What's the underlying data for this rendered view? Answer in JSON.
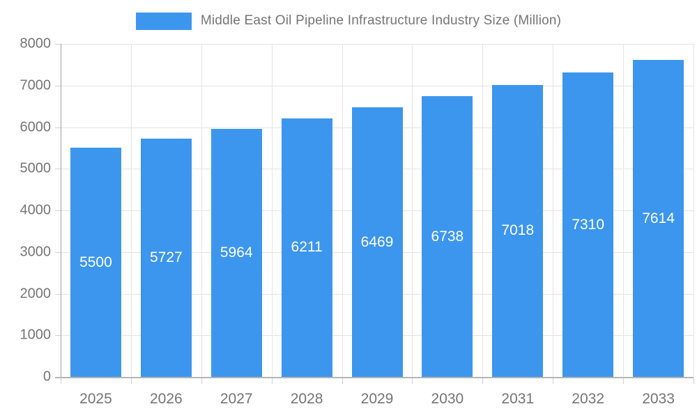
{
  "chart_data": {
    "type": "bar",
    "title": "Middle East Oil Pipeline Infrastructure Industry Size (Million)",
    "categories": [
      "2025",
      "2026",
      "2027",
      "2028",
      "2029",
      "2030",
      "2031",
      "2032",
      "2033"
    ],
    "values": [
      5500,
      5727,
      5964,
      6211,
      6469,
      6738,
      7018,
      7310,
      7614
    ],
    "xlabel": "",
    "ylabel": "",
    "ylim": [
      0,
      8000
    ],
    "y_ticks": [
      0,
      1000,
      2000,
      3000,
      4000,
      5000,
      6000,
      7000,
      8000
    ],
    "grid": "on",
    "legend_position": "top",
    "bar_color": "#3c96ed",
    "bar_label_color": "#ffffff",
    "axis_text_color": "#757575",
    "gridline_color": "#e4e4e4"
  }
}
